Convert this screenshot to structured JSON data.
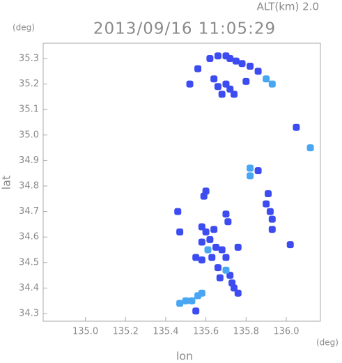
{
  "chart_data": {
    "type": "scatter",
    "title": "2013/09/16 11:05:29",
    "subtitle": "ALT(km)  2.0",
    "x_unit": "(deg)",
    "y_unit": "(deg)",
    "x_label": "lon",
    "y_label": "lat",
    "xlim": [
      134.79,
      136.17
    ],
    "ylim": [
      34.27,
      35.36
    ],
    "xticks": [
      {
        "value": 135,
        "label": "135.0"
      },
      135.2,
      135.4,
      135.6,
      135.8,
      {
        "value": 136,
        "label": "136.0"
      }
    ],
    "yticks": [
      34.3,
      34.4,
      34.5,
      34.6,
      34.7,
      34.8,
      34.9,
      {
        "value": 35,
        "label": "35.0"
      },
      35.1,
      35.2,
      35.3
    ],
    "series": [
      {
        "color": "#3c4cf0",
        "x": [
          135.62,
          135.66,
          135.7,
          135.72,
          135.75,
          135.78,
          135.82,
          135.86,
          135.64,
          135.66,
          135.7,
          135.72,
          135.68,
          135.74,
          135.56,
          135.52,
          135.8,
          136.05,
          135.86,
          135.6,
          135.59,
          135.91,
          135.9,
          135.92,
          135.93,
          135.93,
          135.46,
          136.02,
          135.58,
          135.6,
          135.64,
          135.62,
          135.58,
          135.65,
          135.63,
          135.58,
          135.68,
          135.7,
          135.66,
          135.72,
          135.67,
          135.73,
          135.74,
          135.76,
          135.7,
          135.71,
          135.76,
          135.55,
          135.47,
          135.55
        ],
        "values": [
          35.3,
          35.31,
          35.31,
          35.3,
          35.29,
          35.28,
          35.27,
          35.25,
          35.22,
          35.19,
          35.2,
          35.18,
          35.16,
          35.16,
          35.26,
          35.2,
          35.21,
          35.03,
          34.86,
          34.78,
          34.76,
          34.77,
          34.73,
          34.7,
          34.67,
          34.63,
          34.7,
          34.57,
          34.64,
          34.62,
          34.63,
          34.59,
          34.58,
          34.56,
          34.52,
          34.51,
          34.55,
          34.52,
          34.48,
          34.45,
          34.44,
          34.42,
          34.4,
          34.38,
          34.69,
          34.66,
          34.56,
          34.52,
          34.62,
          34.31
        ]
      },
      {
        "color": "#48a6f2",
        "x": [
          135.9,
          135.93,
          136.12,
          135.82,
          135.82,
          135.61,
          135.7,
          135.47,
          135.5,
          135.53,
          135.56,
          135.58
        ],
        "values": [
          35.22,
          35.2,
          34.95,
          34.87,
          34.84,
          34.55,
          34.47,
          34.34,
          34.35,
          34.35,
          34.37,
          34.38
        ]
      }
    ]
  }
}
